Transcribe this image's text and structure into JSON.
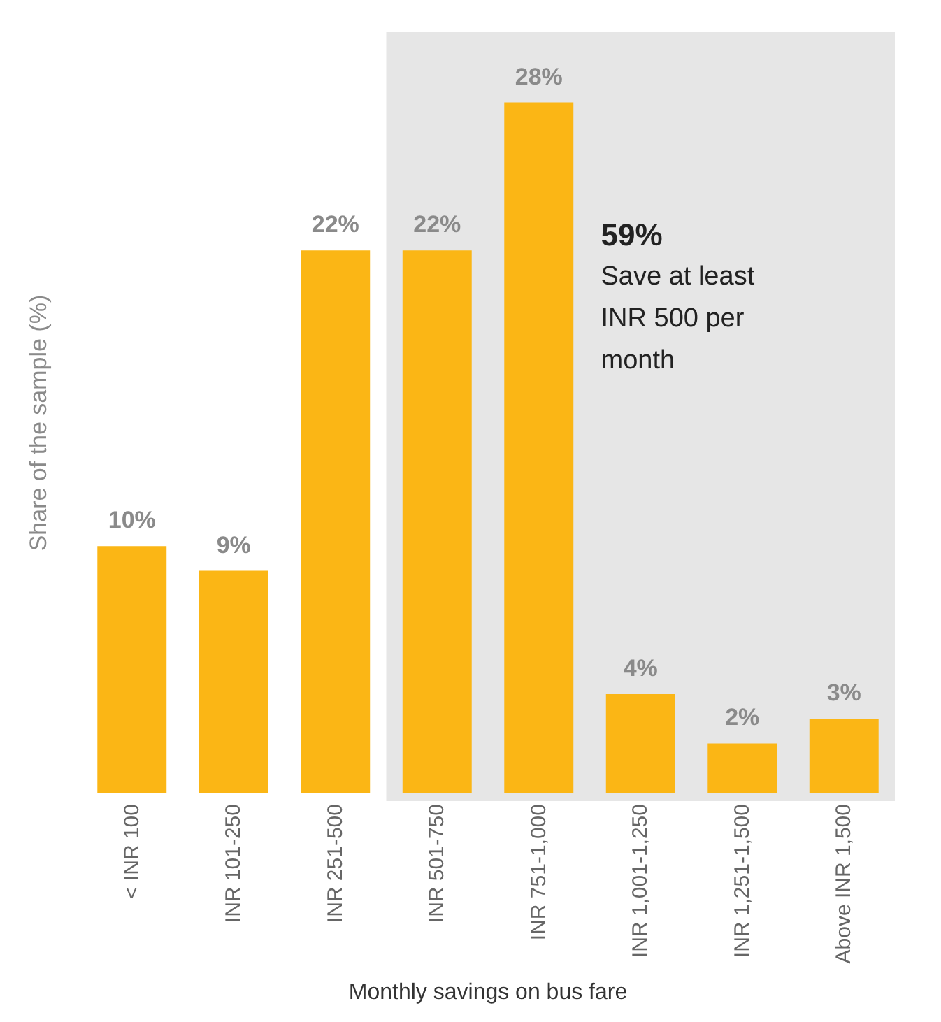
{
  "chart_data": {
    "type": "bar",
    "xlabel": "Monthly savings on bus fare",
    "ylabel": "Share of the sample (%)",
    "categories": [
      "< INR 100",
      "INR 101-250",
      "INR 251-500",
      "INR 501-750",
      "INR 751-1,000",
      "INR 1,001-1,250",
      "INR 1,251-1,500",
      "Above INR 1,500"
    ],
    "values": [
      10,
      9,
      22,
      22,
      28,
      4,
      2,
      3
    ],
    "value_labels": [
      "10%",
      "9%",
      "22%",
      "22%",
      "28%",
      "4%",
      "2%",
      "3%"
    ],
    "color": "#fbb615",
    "bands": [
      {
        "axis": "x",
        "from": "INR 501-750",
        "to": "Above INR 1,500",
        "color": "#e6e6e6"
      }
    ],
    "annotations": [
      "59%",
      "Save at least INR 500 per month"
    ],
    "grid": false
  }
}
